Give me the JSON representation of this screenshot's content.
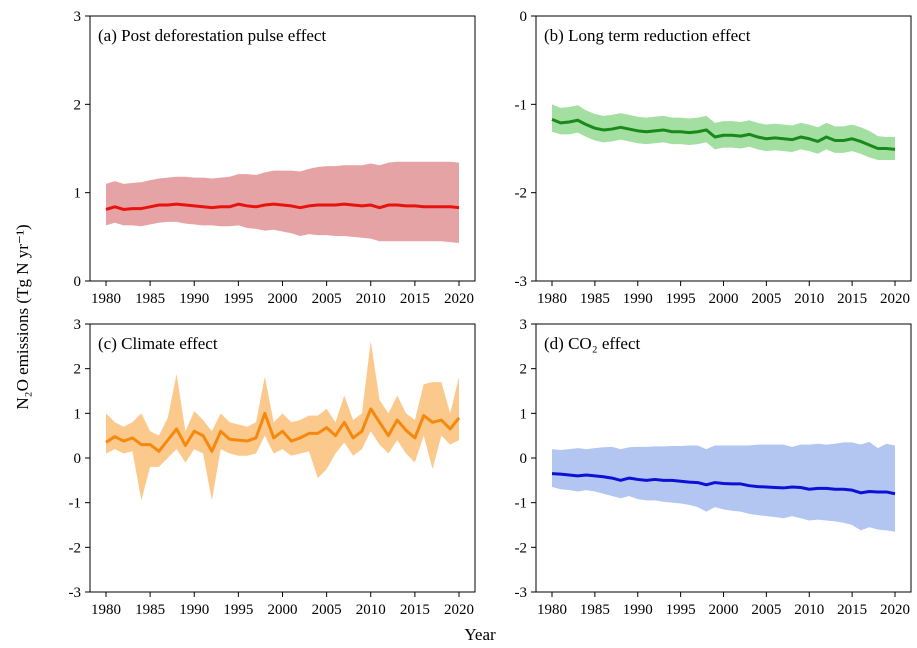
{
  "figure": {
    "ylabel": "N₂O emissions (Tg N yr⁻¹)",
    "xlabel": "Year"
  },
  "chart_data": [
    {
      "type": "line",
      "title": "(a) Post deforestation pulse effect",
      "ylim": [
        0,
        3
      ],
      "yticks": [
        0,
        1,
        2,
        3
      ],
      "xlim": [
        1980,
        2020
      ],
      "xticks": [
        1980,
        1985,
        1990,
        1995,
        2000,
        2005,
        2010,
        2015,
        2020
      ],
      "line_color": "#e8120f",
      "band_color": "#e6a3a5",
      "x": [
        1980,
        1981,
        1982,
        1983,
        1984,
        1985,
        1986,
        1987,
        1988,
        1989,
        1990,
        1991,
        1992,
        1993,
        1994,
        1995,
        1996,
        1997,
        1998,
        1999,
        2000,
        2001,
        2002,
        2003,
        2004,
        2005,
        2006,
        2007,
        2008,
        2009,
        2010,
        2011,
        2012,
        2013,
        2014,
        2015,
        2016,
        2017,
        2018,
        2019,
        2020
      ],
      "mean": [
        0.81,
        0.84,
        0.81,
        0.82,
        0.82,
        0.84,
        0.86,
        0.86,
        0.87,
        0.86,
        0.85,
        0.84,
        0.83,
        0.84,
        0.84,
        0.87,
        0.85,
        0.84,
        0.86,
        0.87,
        0.86,
        0.85,
        0.83,
        0.85,
        0.86,
        0.86,
        0.86,
        0.87,
        0.86,
        0.85,
        0.86,
        0.83,
        0.86,
        0.86,
        0.85,
        0.85,
        0.84,
        0.84,
        0.84,
        0.84,
        0.83
      ],
      "lower": [
        0.63,
        0.66,
        0.63,
        0.63,
        0.62,
        0.64,
        0.66,
        0.67,
        0.67,
        0.65,
        0.64,
        0.63,
        0.63,
        0.62,
        0.62,
        0.63,
        0.6,
        0.59,
        0.57,
        0.58,
        0.56,
        0.54,
        0.51,
        0.53,
        0.52,
        0.52,
        0.51,
        0.51,
        0.5,
        0.49,
        0.48,
        0.45,
        0.45,
        0.45,
        0.45,
        0.45,
        0.45,
        0.45,
        0.45,
        0.44,
        0.43
      ],
      "upper": [
        1.1,
        1.13,
        1.1,
        1.11,
        1.12,
        1.14,
        1.16,
        1.17,
        1.18,
        1.18,
        1.17,
        1.17,
        1.16,
        1.17,
        1.18,
        1.21,
        1.21,
        1.2,
        1.23,
        1.25,
        1.25,
        1.25,
        1.24,
        1.27,
        1.29,
        1.3,
        1.3,
        1.31,
        1.31,
        1.31,
        1.33,
        1.31,
        1.34,
        1.35,
        1.35,
        1.35,
        1.35,
        1.35,
        1.35,
        1.35,
        1.34
      ]
    },
    {
      "type": "line",
      "title": "(b) Long term reduction effect",
      "ylim": [
        -3,
        0
      ],
      "yticks": [
        -3,
        -2,
        -1,
        0
      ],
      "xlim": [
        1980,
        2020
      ],
      "xticks": [
        1980,
        1985,
        1990,
        1995,
        2000,
        2005,
        2010,
        2015,
        2020
      ],
      "line_color": "#18891a",
      "band_color": "#a3dfa1",
      "x": [
        1980,
        1981,
        1982,
        1983,
        1984,
        1985,
        1986,
        1987,
        1988,
        1989,
        1990,
        1991,
        1992,
        1993,
        1994,
        1995,
        1996,
        1997,
        1998,
        1999,
        2000,
        2001,
        2002,
        2003,
        2004,
        2005,
        2006,
        2007,
        2008,
        2009,
        2010,
        2011,
        2012,
        2013,
        2014,
        2015,
        2016,
        2017,
        2018,
        2019,
        2020
      ],
      "mean": [
        -1.17,
        -1.21,
        -1.2,
        -1.18,
        -1.23,
        -1.27,
        -1.29,
        -1.28,
        -1.26,
        -1.28,
        -1.3,
        -1.31,
        -1.3,
        -1.29,
        -1.31,
        -1.31,
        -1.32,
        -1.31,
        -1.29,
        -1.37,
        -1.35,
        -1.35,
        -1.36,
        -1.34,
        -1.37,
        -1.39,
        -1.38,
        -1.39,
        -1.4,
        -1.37,
        -1.39,
        -1.42,
        -1.37,
        -1.41,
        -1.41,
        -1.39,
        -1.42,
        -1.46,
        -1.5,
        -1.5,
        -1.51
      ],
      "lower": [
        -1.31,
        -1.34,
        -1.34,
        -1.32,
        -1.37,
        -1.41,
        -1.43,
        -1.42,
        -1.4,
        -1.42,
        -1.44,
        -1.45,
        -1.44,
        -1.43,
        -1.45,
        -1.45,
        -1.46,
        -1.45,
        -1.43,
        -1.51,
        -1.49,
        -1.49,
        -1.5,
        -1.48,
        -1.51,
        -1.53,
        -1.52,
        -1.53,
        -1.54,
        -1.51,
        -1.53,
        -1.56,
        -1.51,
        -1.55,
        -1.55,
        -1.53,
        -1.56,
        -1.6,
        -1.63,
        -1.63,
        -1.63
      ],
      "upper": [
        -1.0,
        -1.04,
        -1.03,
        -1.01,
        -1.07,
        -1.11,
        -1.13,
        -1.12,
        -1.1,
        -1.12,
        -1.14,
        -1.15,
        -1.14,
        -1.13,
        -1.15,
        -1.15,
        -1.16,
        -1.15,
        -1.13,
        -1.21,
        -1.19,
        -1.19,
        -1.2,
        -1.18,
        -1.21,
        -1.23,
        -1.22,
        -1.23,
        -1.24,
        -1.21,
        -1.23,
        -1.26,
        -1.21,
        -1.25,
        -1.25,
        -1.23,
        -1.26,
        -1.3,
        -1.36,
        -1.37,
        -1.37
      ]
    },
    {
      "type": "line",
      "title": "(c) Climate effect",
      "ylim": [
        -3,
        3
      ],
      "yticks": [
        -3,
        -2,
        -1,
        0,
        1,
        2,
        3
      ],
      "xlim": [
        1980,
        2020
      ],
      "xticks": [
        1980,
        1985,
        1990,
        1995,
        2000,
        2005,
        2010,
        2015,
        2020
      ],
      "line_color": "#f5890f",
      "band_color": "#fbc98c",
      "x": [
        1980,
        1981,
        1982,
        1983,
        1984,
        1985,
        1986,
        1987,
        1988,
        1989,
        1990,
        1991,
        1992,
        1993,
        1994,
        1995,
        1996,
        1997,
        1998,
        1999,
        2000,
        2001,
        2002,
        2003,
        2004,
        2005,
        2006,
        2007,
        2008,
        2009,
        2010,
        2011,
        2012,
        2013,
        2014,
        2015,
        2016,
        2017,
        2018,
        2019,
        2020
      ],
      "mean": [
        0.35,
        0.48,
        0.38,
        0.45,
        0.3,
        0.3,
        0.15,
        0.4,
        0.65,
        0.28,
        0.6,
        0.5,
        0.15,
        0.6,
        0.42,
        0.4,
        0.38,
        0.45,
        1.0,
        0.45,
        0.6,
        0.38,
        0.45,
        0.55,
        0.55,
        0.68,
        0.5,
        0.8,
        0.45,
        0.6,
        1.1,
        0.8,
        0.5,
        0.85,
        0.62,
        0.45,
        0.95,
        0.8,
        0.85,
        0.65,
        0.9
      ],
      "lower": [
        0.1,
        0.2,
        0.1,
        0.15,
        -0.95,
        -0.2,
        -0.2,
        0.0,
        0.2,
        -0.1,
        0.2,
        0.1,
        -0.95,
        0.2,
        0.1,
        0.05,
        0.05,
        0.1,
        0.5,
        0.1,
        0.2,
        0.05,
        0.1,
        0.15,
        -0.45,
        -0.25,
        0.1,
        0.35,
        0.05,
        0.2,
        0.6,
        0.3,
        0.1,
        0.4,
        0.1,
        -0.1,
        0.5,
        -0.25,
        0.5,
        0.3,
        0.4
      ],
      "upper": [
        1.0,
        0.8,
        0.7,
        0.8,
        1.0,
        0.6,
        0.5,
        0.9,
        1.88,
        0.6,
        1.05,
        0.85,
        0.6,
        1.0,
        0.8,
        0.75,
        0.7,
        0.8,
        1.82,
        0.8,
        1.0,
        0.8,
        0.85,
        0.95,
        0.95,
        1.1,
        0.8,
        1.4,
        0.85,
        1.0,
        2.62,
        1.3,
        1.0,
        1.4,
        1.0,
        0.85,
        1.65,
        1.7,
        1.7,
        1.0,
        1.82
      ]
    },
    {
      "type": "line",
      "title": "(d) CO₂ effect",
      "ylim": [
        -3,
        3
      ],
      "yticks": [
        -3,
        -2,
        -1,
        0,
        1,
        2,
        3
      ],
      "xlim": [
        1980,
        2020
      ],
      "xticks": [
        1980,
        1985,
        1990,
        1995,
        2000,
        2005,
        2010,
        2015,
        2020
      ],
      "line_color": "#0b11d5",
      "band_color": "#b3c6f1",
      "x": [
        1980,
        1981,
        1982,
        1983,
        1984,
        1985,
        1986,
        1987,
        1988,
        1989,
        1990,
        1991,
        1992,
        1993,
        1994,
        1995,
        1996,
        1997,
        1998,
        1999,
        2000,
        2001,
        2002,
        2003,
        2004,
        2005,
        2006,
        2007,
        2008,
        2009,
        2010,
        2011,
        2012,
        2013,
        2014,
        2015,
        2016,
        2017,
        2018,
        2019,
        2020
      ],
      "mean": [
        -0.35,
        -0.36,
        -0.38,
        -0.4,
        -0.38,
        -0.4,
        -0.42,
        -0.45,
        -0.5,
        -0.45,
        -0.48,
        -0.5,
        -0.48,
        -0.5,
        -0.5,
        -0.52,
        -0.54,
        -0.55,
        -0.6,
        -0.55,
        -0.57,
        -0.58,
        -0.58,
        -0.62,
        -0.64,
        -0.65,
        -0.66,
        -0.67,
        -0.65,
        -0.66,
        -0.7,
        -0.68,
        -0.68,
        -0.7,
        -0.7,
        -0.72,
        -0.78,
        -0.75,
        -0.76,
        -0.76,
        -0.8
      ],
      "lower": [
        -0.65,
        -0.7,
        -0.72,
        -0.75,
        -0.72,
        -0.75,
        -0.8,
        -0.85,
        -0.9,
        -0.85,
        -0.92,
        -0.95,
        -0.95,
        -0.98,
        -1.0,
        -1.02,
        -1.05,
        -1.1,
        -1.2,
        -1.1,
        -1.15,
        -1.18,
        -1.2,
        -1.25,
        -1.28,
        -1.3,
        -1.32,
        -1.35,
        -1.3,
        -1.35,
        -1.4,
        -1.38,
        -1.4,
        -1.42,
        -1.45,
        -1.5,
        -1.62,
        -1.55,
        -1.6,
        -1.62,
        -1.65
      ],
      "upper": [
        0.2,
        0.18,
        0.2,
        0.22,
        0.2,
        0.22,
        0.24,
        0.25,
        0.2,
        0.24,
        0.25,
        0.25,
        0.26,
        0.26,
        0.27,
        0.27,
        0.28,
        0.28,
        0.2,
        0.28,
        0.28,
        0.28,
        0.28,
        0.28,
        0.3,
        0.3,
        0.3,
        0.3,
        0.25,
        0.3,
        0.3,
        0.32,
        0.3,
        0.32,
        0.35,
        0.35,
        0.3,
        0.36,
        0.22,
        0.32,
        0.28
      ]
    }
  ]
}
